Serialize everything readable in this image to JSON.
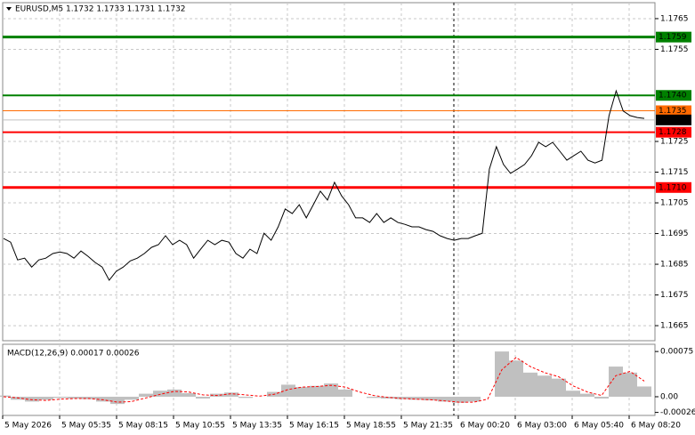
{
  "header": "EURUSD,M5  1.1732 1.1733 1.1731 1.1732",
  "x_labels": [
    "5 May 2026",
    "5 May 05:35",
    "5 May 08:15",
    "5 May 10:55",
    "5 May 13:35",
    "5 May 16:15",
    "5 May 18:55",
    "5 May 21:35",
    "6 May 00:20",
    "6 May 03:00",
    "6 May 05:40",
    "6 May 08:20"
  ],
  "chart_data": [
    {
      "type": "line",
      "color": "#000000",
      "values": [
        1.16934,
        1.16922,
        1.16864,
        1.1687,
        1.16841,
        1.16864,
        1.1687,
        1.16885,
        1.1689,
        1.16885,
        1.1687,
        1.16893,
        1.16876,
        1.16856,
        1.16841,
        1.16798,
        1.16827,
        1.16841,
        1.16861,
        1.1687,
        1.16885,
        1.16905,
        1.16914,
        1.16943,
        1.16914,
        1.16928,
        1.16914,
        1.1687,
        1.16899,
        1.16928,
        1.16914,
        1.16928,
        1.16922,
        1.16885,
        1.1687,
        1.16899,
        1.16885,
        1.16951,
        1.16928,
        1.16972,
        1.1703,
        1.17015,
        1.17044,
        1.17001,
        1.17044,
        1.17088,
        1.17059,
        1.17117,
        1.17073,
        1.17044,
        1.17001,
        1.17001,
        1.16986,
        1.17015,
        1.16986,
        1.17001,
        1.16986,
        1.1698,
        1.16972,
        1.16972,
        1.16963,
        1.16957,
        1.16943,
        1.16934,
        1.16928,
        1.16934,
        1.16934,
        1.16943,
        1.16951,
        1.1716,
        1.17233,
        1.17175,
        1.17146,
        1.1716,
        1.17175,
        1.17204,
        1.17247,
        1.17233,
        1.17247,
        1.17218,
        1.17189,
        1.17204,
        1.17218,
        1.17189,
        1.1718,
        1.17189,
        1.17334,
        1.17415,
        1.17349,
        1.17334,
        1.17328,
        1.17325
      ],
      "ylim": [
        1.16601,
        1.17702
      ],
      "yticks": [
        1.1765,
        1.1755,
        1.1725,
        1.1715,
        1.1705,
        1.1695,
        1.1685,
        1.1675,
        1.1665
      ],
      "grid": true,
      "levels": [
        {
          "value": 1.1759,
          "color": "#008000",
          "style": "thick"
        },
        {
          "value": 1.174,
          "label": "1.1740",
          "color": "#008000",
          "style": "medium"
        },
        {
          "value": 1.1735,
          "color": "#ff6a00",
          "style": "thin"
        },
        {
          "value": 1.1732,
          "color": "#c0c0c0",
          "label_color": "#000000",
          "style": "thin"
        },
        {
          "value": 1.1728,
          "color": "#ff0000",
          "style": "medium"
        },
        {
          "value": 1.171,
          "label": "1.1710",
          "color": "#ff0000",
          "style": "thick"
        }
      ]
    },
    {
      "type": "macd",
      "title": "MACD(12,26,9) 0.00017 0.00026",
      "ylim": [
        -0.00031,
        0.00087
      ],
      "yticks": [
        0.00075,
        {
          "value": 0,
          "label": "0.00"
        },
        -0.00026
      ],
      "series": [
        {
          "kind": "bar",
          "color": "#c0c0c0",
          "values": [
            2e-05,
            -5e-05,
            -8e-05,
            -5e-05,
            -2e-05,
            -3e-05,
            -4e-05,
            -8e-05,
            -0.00012,
            -5e-05,
            5e-05,
            0.0001,
            0.00012,
            6e-05,
            -3e-05,
            5e-05,
            7e-05,
            -2e-05,
            0,
            8e-05,
            0.0002,
            0.00016,
            0.00018,
            0.00022,
            0.00012,
            0,
            -2e-05,
            -3e-05,
            -4e-05,
            -5e-05,
            -6e-05,
            -8e-05,
            -0.0001,
            -8e-05,
            0,
            0.00075,
            0.0006,
            0.0004,
            0.00035,
            0.0003,
            0.0001,
            5e-05,
            -3e-05,
            0.0005,
            0.0004,
            0.00017
          ]
        },
        {
          "kind": "line",
          "color": "#ff0000",
          "values": [
            0,
            -2e-05,
            -5e-05,
            -6e-05,
            -4e-05,
            -3e-05,
            -3e-05,
            -5e-05,
            -9e-05,
            -8e-05,
            -2e-05,
            4e-05,
            9e-05,
            8e-05,
            3e-05,
            2e-05,
            5e-05,
            3e-05,
            1e-05,
            4e-05,
            0.00012,
            0.00016,
            0.00017,
            0.00019,
            0.00016,
            8e-05,
            2e-05,
            -1e-05,
            -3e-05,
            -4e-05,
            -5e-05,
            -7e-05,
            -9e-05,
            -9e-05,
            -4e-05,
            0.00045,
            0.00065,
            0.0005,
            0.0004,
            0.00033,
            0.00018,
            8e-05,
            2e-05,
            0.00035,
            0.00042,
            0.00026
          ]
        }
      ]
    }
  ]
}
